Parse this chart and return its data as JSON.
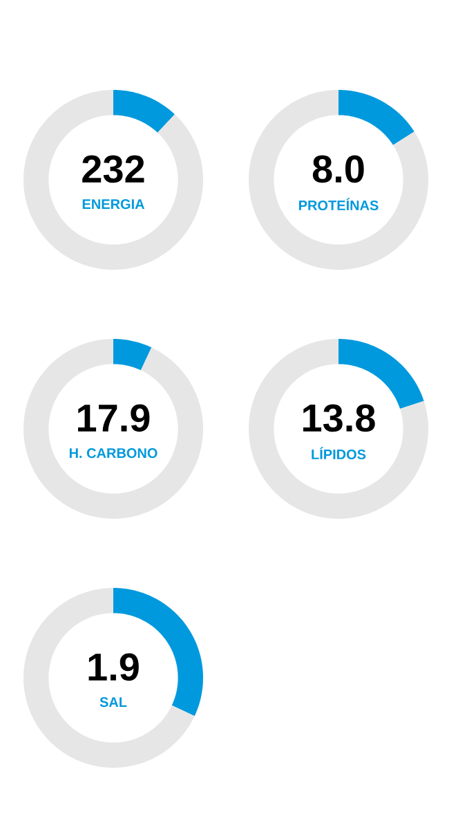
{
  "chart_data": [
    {
      "type": "donut",
      "title": "ENERGIA",
      "annotations": [
        "232"
      ],
      "categories": [
        null,
        null
      ],
      "values": [
        12,
        88
      ],
      "colors": [
        "#0099dd",
        "#e6e6e6"
      ]
    },
    {
      "type": "donut",
      "title": "PROTEÍNAS",
      "annotations": [
        "8.0"
      ],
      "categories": [
        null,
        null
      ],
      "values": [
        16,
        84
      ],
      "colors": [
        "#0099dd",
        "#e6e6e6"
      ]
    },
    {
      "type": "donut",
      "title": "H. CARBONO",
      "annotations": [
        "17.9"
      ],
      "categories": [
        null,
        null
      ],
      "values": [
        7,
        93
      ],
      "colors": [
        "#0099dd",
        "#e6e6e6"
      ]
    },
    {
      "type": "donut",
      "title": "LÍPIDOS",
      "annotations": [
        "13.8"
      ],
      "categories": [
        null,
        null
      ],
      "values": [
        20,
        80
      ],
      "colors": [
        "#0099dd",
        "#e6e6e6"
      ]
    },
    {
      "type": "donut",
      "title": "SAL",
      "annotations": [
        "1.9"
      ],
      "categories": [
        null,
        null
      ],
      "values": [
        32,
        68
      ],
      "colors": [
        "#0099dd",
        "#e6e6e6"
      ]
    }
  ]
}
